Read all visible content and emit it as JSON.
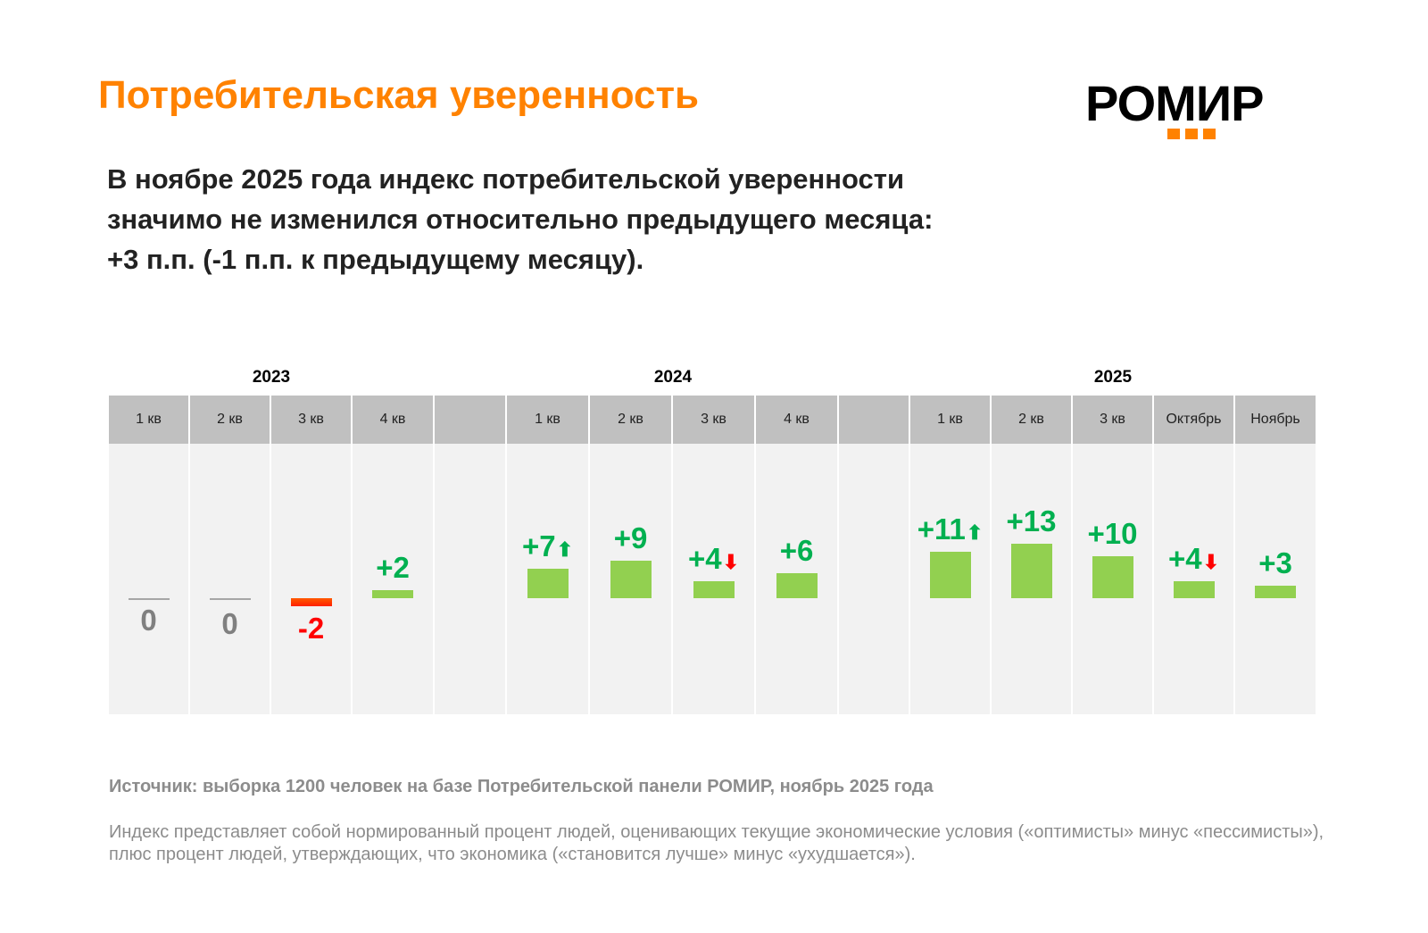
{
  "title": "Потребительская уверенность",
  "logo": {
    "text": "РОМИР"
  },
  "lead": [
    "В ноябре 2025 года индекс потребительской уверенности",
    "значимо не изменился относительно предыдущего месяца:",
    "+3 п.п. (-1 п.п. к предыдущему месяцу)."
  ],
  "colors": {
    "accent": "#ff8200",
    "positive": "#00b050",
    "bar_positive": "#92d050",
    "negative": "#ff0000",
    "zero": "#808080"
  },
  "chart_data": {
    "type": "bar",
    "years": [
      {
        "label": "2023"
      },
      {
        "label": "2024"
      },
      {
        "label": "2025"
      }
    ],
    "categories": [
      "1 кв",
      "2 кв",
      "3 кв",
      "4 кв",
      "",
      "1 кв",
      "2 кв",
      "3 кв",
      "4 кв",
      "",
      "1 кв",
      "2 кв",
      "3 кв",
      "Октябрь",
      "Ноябрь"
    ],
    "values": [
      0,
      0,
      -2,
      2,
      null,
      7,
      9,
      4,
      6,
      null,
      11,
      13,
      10,
      4,
      3
    ],
    "labels": [
      "0",
      "0",
      "-2",
      "+2",
      "",
      "+7",
      "+9",
      "+4",
      "+6",
      "",
      "+11",
      "+13",
      "+10",
      "+4",
      "+3"
    ],
    "trend": [
      null,
      null,
      null,
      null,
      null,
      "up",
      null,
      "down",
      null,
      null,
      "up",
      null,
      null,
      "down",
      null
    ],
    "ylabel": "п.п."
  },
  "source": "Источник: выборка 1200 человек на базе Потребительской панели РОМИР, ноябрь 2025 года",
  "note": "Индекс представляет собой нормированный процент людей, оценивающих текущие экономические условия («оптимисты» минус «пессимисты»), плюс процент людей, утверждающих, что экономика («становится лучше» минус «ухудшается»)."
}
